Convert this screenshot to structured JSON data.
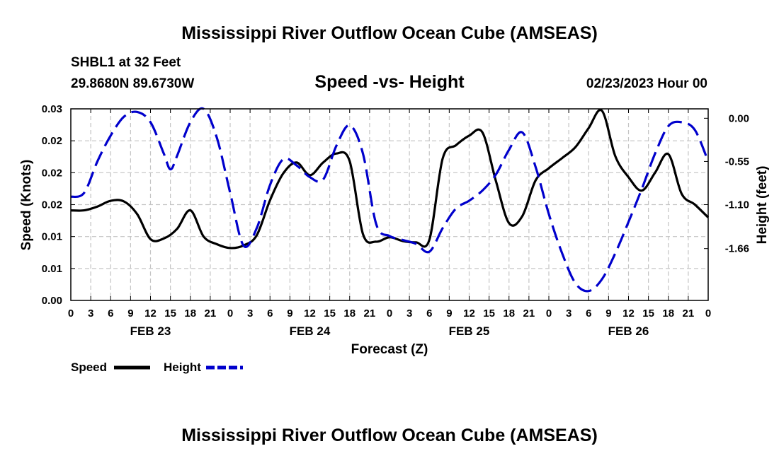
{
  "chart_data": {
    "type": "line",
    "title": "Mississippi River Outflow Ocean Cube (AMSEAS)",
    "footer_title": "Mississippi River Outflow Ocean Cube (AMSEAS)",
    "station": "SHBL1 at 32 Feet",
    "location": "29.8680N  89.6730W",
    "subtitle": "Speed -vs- Height",
    "datetime": "02/23/2023 Hour 00",
    "xlabel": "Forecast (Z)",
    "ylabel_left": "Speed (Knots)",
    "ylabel_right": "Height (feet)",
    "x_range": [
      0,
      96
    ],
    "x_tick_step": 3,
    "x_tick_labels": [
      "0",
      "3",
      "6",
      "9",
      "12",
      "15",
      "18",
      "21",
      "0",
      "3",
      "6",
      "9",
      "12",
      "15",
      "18",
      "21",
      "0",
      "3",
      "6",
      "9",
      "12",
      "15",
      "18",
      "21",
      "0",
      "3",
      "6",
      "9",
      "12",
      "15",
      "18",
      "21",
      "0"
    ],
    "day_labels": [
      {
        "label": "FEB 23",
        "hour": 12
      },
      {
        "label": "FEB 24",
        "hour": 36
      },
      {
        "label": "FEB 25",
        "hour": 60
      },
      {
        "label": "FEB 26",
        "hour": 84
      }
    ],
    "speed_axis": {
      "range": [
        0,
        0.03
      ],
      "ticks": [
        0,
        0.005,
        0.01,
        0.015,
        0.02,
        0.025,
        0.03
      ],
      "tick_labels": [
        "0.00",
        "0.01",
        "0.01",
        "0.02",
        "0.02",
        "0.02",
        "0.03"
      ]
    },
    "height_axis": {
      "range": [
        -2.32,
        0.12
      ],
      "ticks": [
        0.0,
        -0.55,
        -1.1,
        -1.66
      ],
      "tick_labels": [
        "0.00",
        "-0.55",
        "-1.10",
        "-1.66"
      ]
    },
    "series": [
      {
        "name": "Speed",
        "color": "#000000",
        "style": "solid",
        "axis": "left",
        "x": [
          0,
          2,
          4,
          6,
          8,
          10,
          12,
          14,
          16,
          18,
          20,
          22,
          24,
          26,
          28,
          30,
          32,
          34,
          36,
          38,
          40,
          42,
          44,
          46,
          48,
          50,
          52,
          54,
          56,
          58,
          60,
          62,
          64,
          66,
          68,
          70,
          72,
          74,
          76,
          78,
          80,
          82,
          84,
          86,
          88,
          90,
          92,
          94,
          96
        ],
        "y": [
          0.0141,
          0.0141,
          0.0147,
          0.0156,
          0.0155,
          0.0135,
          0.0096,
          0.0097,
          0.0112,
          0.0141,
          0.01,
          0.0088,
          0.0082,
          0.0086,
          0.0102,
          0.0157,
          0.0199,
          0.0216,
          0.0196,
          0.0216,
          0.023,
          0.0218,
          0.0104,
          0.0092,
          0.0099,
          0.0093,
          0.0091,
          0.0095,
          0.0222,
          0.0243,
          0.0258,
          0.0263,
          0.0188,
          0.0121,
          0.0132,
          0.0188,
          0.0207,
          0.0223,
          0.024,
          0.027,
          0.0297,
          0.0226,
          0.0193,
          0.0172,
          0.02,
          0.0229,
          0.0167,
          0.015,
          0.013
        ]
      },
      {
        "name": "Height",
        "color": "#0000cc",
        "style": "dashed",
        "axis": "right",
        "x": [
          0,
          2,
          4,
          6,
          8,
          10,
          12,
          14,
          15,
          16,
          18,
          20,
          22,
          24,
          26,
          28,
          30,
          32,
          34,
          36,
          38,
          40,
          42,
          44,
          46,
          48,
          50,
          52,
          54,
          56,
          58,
          60,
          62,
          64,
          66,
          68,
          70,
          72,
          74,
          76,
          78,
          80,
          82,
          84,
          86,
          88,
          90,
          92,
          94,
          96
        ],
        "y": [
          -1.0,
          -0.95,
          -0.55,
          -0.22,
          0.02,
          0.08,
          -0.05,
          -0.45,
          -0.65,
          -0.48,
          -0.05,
          0.12,
          -0.25,
          -0.95,
          -1.62,
          -1.4,
          -0.85,
          -0.52,
          -0.6,
          -0.75,
          -0.78,
          -0.35,
          -0.09,
          -0.45,
          -1.35,
          -1.5,
          -1.55,
          -1.6,
          -1.7,
          -1.4,
          -1.15,
          -1.05,
          -0.92,
          -0.72,
          -0.4,
          -0.18,
          -0.62,
          -1.22,
          -1.72,
          -2.1,
          -2.2,
          -2.05,
          -1.72,
          -1.32,
          -0.9,
          -0.45,
          -0.1,
          -0.05,
          -0.15,
          -0.55
        ]
      }
    ],
    "grid": true,
    "legend_position": "bottom-left"
  }
}
